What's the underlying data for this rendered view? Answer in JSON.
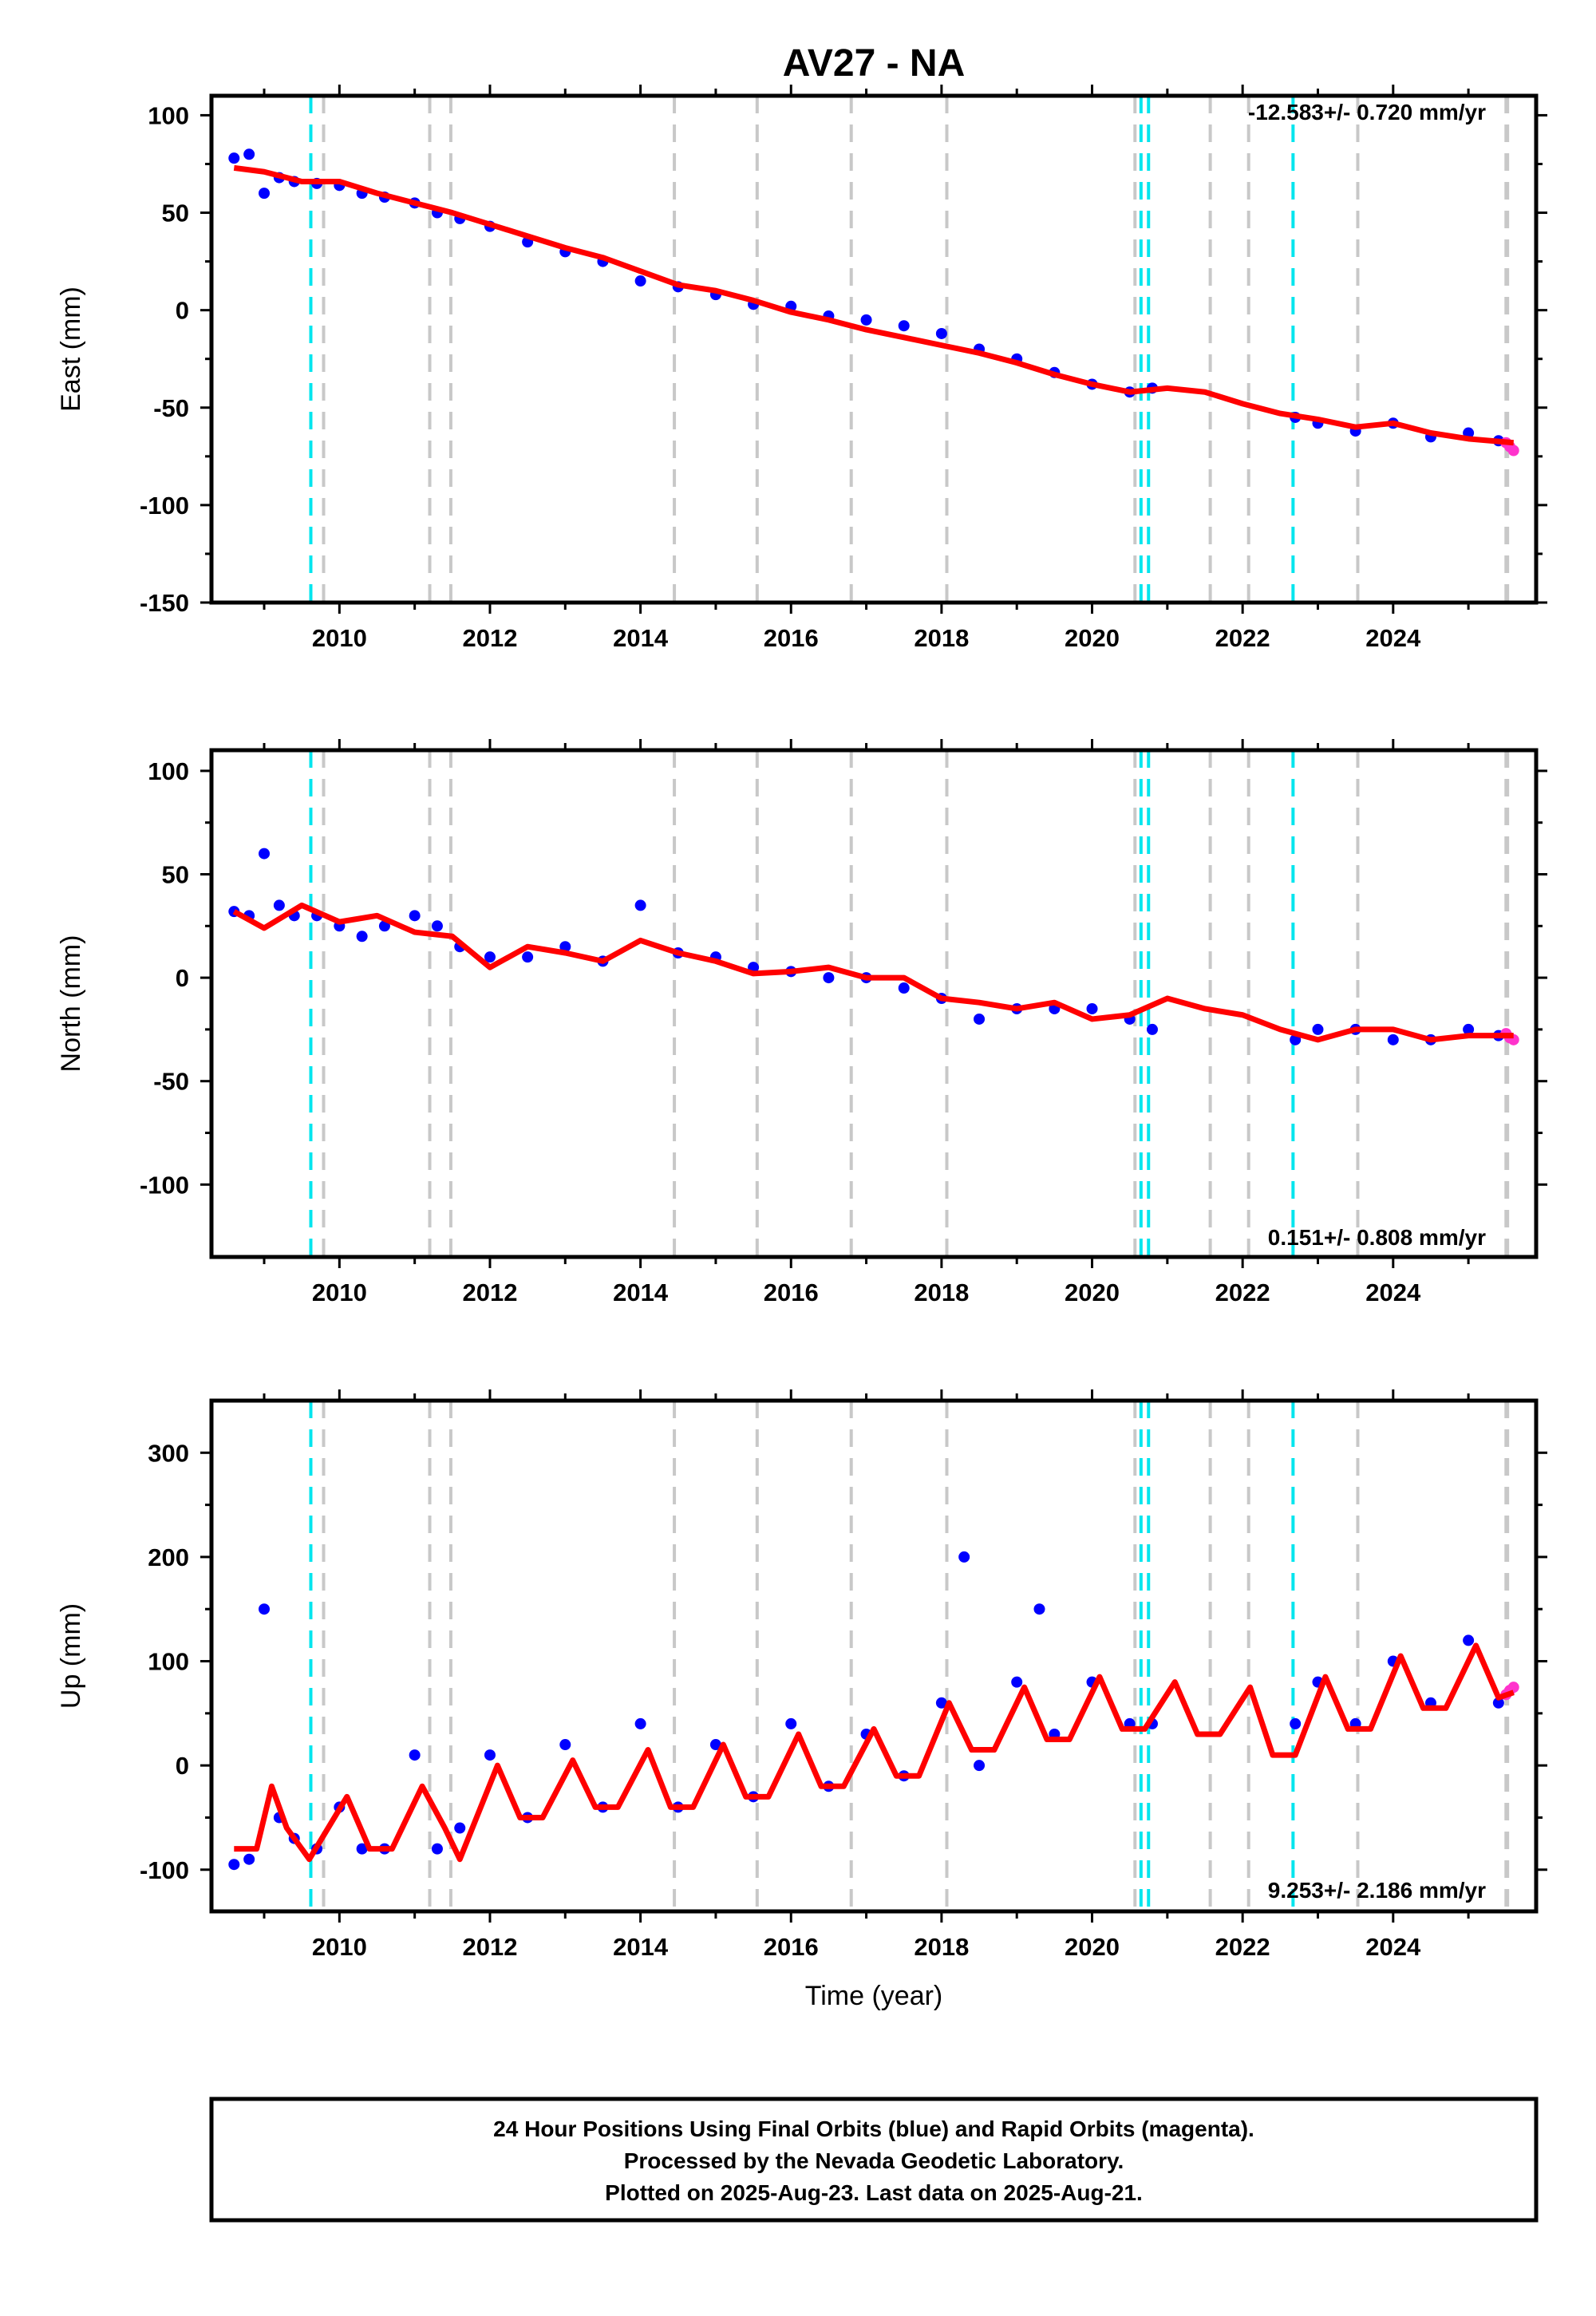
{
  "title": "AV27 - NA",
  "xlabel": "Time (year)",
  "footer": {
    "line1": "24 Hour Positions Using Final Orbits (blue) and Rapid Orbits (magenta).",
    "line2": "Processed by the Nevada Geodetic Laboratory.",
    "line3": "Plotted on 2025-Aug-23. Last data on 2025-Aug-21."
  },
  "colors": {
    "final_orbit_points": "#0000ff",
    "rapid_orbit_points": "#ff33cc",
    "model_fit": "#ff0000",
    "equipment_change_lines": "#00e5ee",
    "other_event_lines": "#c8c8c8"
  },
  "chart_data": [
    {
      "type": "scatter",
      "component": "east",
      "ylabel": "East (mm)",
      "rate_text": "-12.583+/- 0.720 mm/yr",
      "xlim": [
        2008.3,
        2025.9
      ],
      "ylim": [
        -150,
        110
      ],
      "xticks": [
        2010,
        2012,
        2014,
        2016,
        2018,
        2020,
        2022,
        2024
      ],
      "yticks": [
        100,
        50,
        0,
        -50,
        -100,
        -150
      ],
      "grid": false,
      "series": [
        {
          "role": "final",
          "x": [
            2008.6,
            2008.8,
            2009.0,
            2009.2,
            2009.4,
            2009.7,
            2010.0,
            2010.3,
            2010.6,
            2011.0,
            2011.3,
            2011.6,
            2012.0,
            2012.5,
            2013.0,
            2013.5,
            2014.0,
            2014.5,
            2015.0,
            2015.5,
            2016.0,
            2016.5,
            2017.0,
            2017.5,
            2018.0,
            2018.5,
            2019.0,
            2019.5,
            2020.0,
            2020.5,
            2020.8,
            2022.7,
            2023.0,
            2023.5,
            2024.0,
            2024.5,
            2025.0,
            2025.4
          ],
          "y": [
            78,
            80,
            60,
            68,
            66,
            65,
            64,
            60,
            58,
            55,
            50,
            47,
            43,
            35,
            30,
            25,
            15,
            12,
            8,
            3,
            2,
            -3,
            -5,
            -8,
            -12,
            -20,
            -25,
            -32,
            -38,
            -42,
            -40,
            -55,
            -58,
            -62,
            -58,
            -65,
            -63,
            -67
          ]
        },
        {
          "role": "rapid",
          "x": [
            2025.5,
            2025.55,
            2025.6
          ],
          "y": [
            -68,
            -70,
            -72
          ]
        },
        {
          "role": "model",
          "x": [
            2008.6,
            2009.0,
            2009.5,
            2010.0,
            2010.5,
            2011.0,
            2011.5,
            2012.0,
            2012.5,
            2013.0,
            2013.5,
            2014.0,
            2014.5,
            2015.0,
            2015.5,
            2016.0,
            2016.5,
            2017.0,
            2017.5,
            2018.0,
            2018.5,
            2019.0,
            2019.5,
            2020.0,
            2020.5,
            2021.0,
            2021.5,
            2022.0,
            2022.5,
            2023.0,
            2023.5,
            2024.0,
            2024.5,
            2025.0,
            2025.6
          ],
          "y": [
            73,
            71,
            66,
            66,
            60,
            55,
            50,
            44,
            38,
            32,
            27,
            20,
            13,
            10,
            5,
            -1,
            -5,
            -10,
            -14,
            -18,
            -22,
            -27,
            -33,
            -38,
            -42,
            -40,
            -42,
            -48,
            -53,
            -56,
            -60,
            -58,
            -63,
            -66,
            -68
          ]
        }
      ]
    },
    {
      "type": "scatter",
      "component": "north",
      "ylabel": "North (mm)",
      "rate_text": "0.151+/- 0.808 mm/yr",
      "xlim": [
        2008.3,
        2025.9
      ],
      "ylim": [
        -135,
        110
      ],
      "xticks": [
        2010,
        2012,
        2014,
        2016,
        2018,
        2020,
        2022,
        2024
      ],
      "yticks": [
        100,
        50,
        0,
        -50,
        -100
      ],
      "grid": false,
      "series": [
        {
          "role": "final",
          "x": [
            2008.6,
            2008.8,
            2009.0,
            2009.2,
            2009.4,
            2009.7,
            2010.0,
            2010.3,
            2010.6,
            2011.0,
            2011.3,
            2011.6,
            2012.0,
            2012.5,
            2013.0,
            2013.5,
            2014.0,
            2014.5,
            2015.0,
            2015.5,
            2016.0,
            2016.5,
            2017.0,
            2017.5,
            2018.0,
            2018.5,
            2019.0,
            2019.5,
            2020.0,
            2020.5,
            2020.8,
            2022.7,
            2023.0,
            2023.5,
            2024.0,
            2024.5,
            2025.0,
            2025.4
          ],
          "y": [
            32,
            30,
            60,
            35,
            30,
            30,
            25,
            20,
            25,
            30,
            25,
            15,
            10,
            10,
            15,
            8,
            35,
            12,
            10,
            5,
            3,
            0,
            0,
            -5,
            -10,
            -20,
            -15,
            -15,
            -15,
            -20,
            -25,
            -30,
            -25,
            -25,
            -30,
            -30,
            -25,
            -28
          ]
        },
        {
          "role": "rapid",
          "x": [
            2025.5,
            2025.55,
            2025.6
          ],
          "y": [
            -27,
            -29,
            -30
          ]
        },
        {
          "role": "model",
          "x": [
            2008.6,
            2009.0,
            2009.5,
            2010.0,
            2010.5,
            2011.0,
            2011.5,
            2012.0,
            2012.5,
            2013.0,
            2013.5,
            2014.0,
            2014.5,
            2015.0,
            2015.5,
            2016.0,
            2016.5,
            2017.0,
            2017.5,
            2018.0,
            2018.5,
            2019.0,
            2019.5,
            2020.0,
            2020.5,
            2021.0,
            2021.5,
            2022.0,
            2022.5,
            2023.0,
            2023.5,
            2024.0,
            2024.5,
            2025.0,
            2025.6
          ],
          "y": [
            32,
            24,
            35,
            27,
            30,
            22,
            20,
            5,
            15,
            12,
            8,
            18,
            12,
            8,
            2,
            3,
            5,
            0,
            0,
            -10,
            -12,
            -15,
            -12,
            -20,
            -18,
            -10,
            -15,
            -18,
            -25,
            -30,
            -25,
            -25,
            -30,
            -28,
            -28
          ]
        }
      ]
    },
    {
      "type": "scatter",
      "component": "up",
      "ylabel": "Up (mm)",
      "rate_text": "9.253+/- 2.186 mm/yr",
      "xlim": [
        2008.3,
        2025.9
      ],
      "ylim": [
        -140,
        350
      ],
      "xticks": [
        2010,
        2012,
        2014,
        2016,
        2018,
        2020,
        2022,
        2024
      ],
      "yticks": [
        300,
        200,
        100,
        0,
        -100
      ],
      "grid": false,
      "series": [
        {
          "role": "final",
          "x": [
            2008.6,
            2008.8,
            2009.0,
            2009.2,
            2009.4,
            2009.7,
            2010.0,
            2010.3,
            2010.6,
            2011.0,
            2011.3,
            2011.6,
            2012.0,
            2012.5,
            2013.0,
            2013.5,
            2014.0,
            2014.5,
            2015.0,
            2015.5,
            2016.0,
            2016.5,
            2017.0,
            2017.5,
            2018.0,
            2018.3,
            2018.5,
            2019.0,
            2019.3,
            2019.5,
            2020.0,
            2020.5,
            2020.8,
            2022.7,
            2023.0,
            2023.5,
            2024.0,
            2024.5,
            2025.0,
            2025.4
          ],
          "y": [
            -95,
            -90,
            150,
            -50,
            -70,
            -80,
            -40,
            -80,
            -80,
            10,
            -80,
            -60,
            10,
            -50,
            20,
            -40,
            40,
            -40,
            20,
            -30,
            40,
            -20,
            30,
            -10,
            60,
            200,
            0,
            80,
            150,
            30,
            80,
            40,
            40,
            40,
            80,
            40,
            100,
            60,
            120,
            60
          ]
        },
        {
          "role": "rapid",
          "x": [
            2025.5,
            2025.55,
            2025.6
          ],
          "y": [
            68,
            72,
            75
          ]
        },
        {
          "role": "model",
          "x": [
            2008.6,
            2008.9,
            2009.1,
            2009.3,
            2009.6,
            2010.1,
            2010.4,
            2010.7,
            2011.1,
            2011.4,
            2011.6,
            2012.1,
            2012.4,
            2012.7,
            2013.1,
            2013.4,
            2013.7,
            2014.1,
            2014.4,
            2014.7,
            2015.1,
            2015.4,
            2015.7,
            2016.1,
            2016.4,
            2016.7,
            2017.1,
            2017.4,
            2017.7,
            2018.1,
            2018.4,
            2018.7,
            2019.1,
            2019.4,
            2019.7,
            2020.1,
            2020.4,
            2020.7,
            2021.1,
            2021.4,
            2021.7,
            2022.1,
            2022.4,
            2022.7,
            2023.1,
            2023.4,
            2023.7,
            2024.1,
            2024.4,
            2024.7,
            2025.1,
            2025.4,
            2025.6
          ],
          "y": [
            -80,
            -80,
            -20,
            -60,
            -90,
            -30,
            -80,
            -80,
            -20,
            -60,
            -90,
            0,
            -50,
            -50,
            5,
            -40,
            -40,
            15,
            -40,
            -40,
            20,
            -30,
            -30,
            30,
            -20,
            -20,
            35,
            -10,
            -10,
            60,
            15,
            15,
            75,
            25,
            25,
            85,
            35,
            35,
            80,
            30,
            30,
            75,
            10,
            10,
            85,
            35,
            35,
            105,
            55,
            55,
            115,
            65,
            70
          ]
        }
      ]
    }
  ],
  "events": {
    "equipment_change_lines": [
      2009.62,
      2020.65,
      2020.75,
      2022.67
    ],
    "other_event_lines": [
      2009.79,
      2011.2,
      2011.48,
      2014.45,
      2015.55,
      2016.8,
      2018.07,
      2020.57,
      2021.57,
      2022.08,
      2023.53,
      2025.5,
      2025.52
    ]
  }
}
